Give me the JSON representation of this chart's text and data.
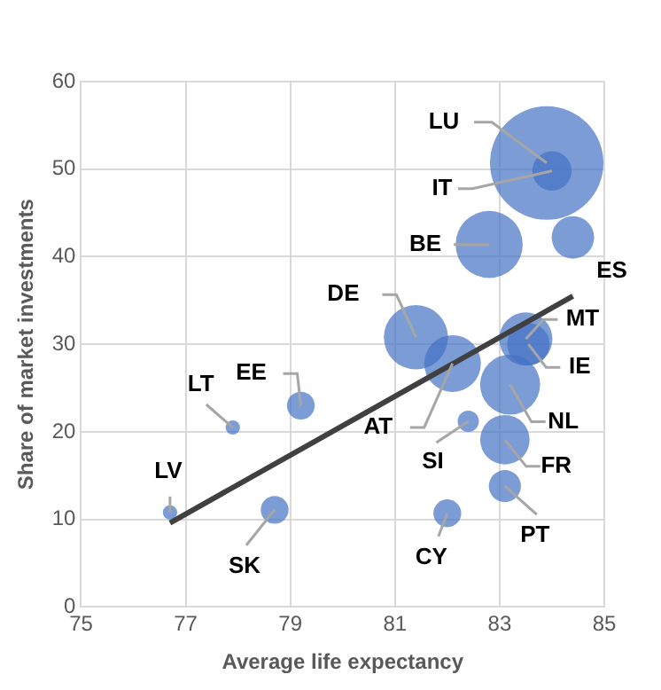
{
  "chart_data": {
    "type": "bubble",
    "xlabel": "Average life expectancy",
    "ylabel": "Share of market investments",
    "xlim": [
      75,
      85
    ],
    "xticks": [
      75,
      77,
      79,
      81,
      83,
      85
    ],
    "ylim": [
      0,
      60
    ],
    "yticks": [
      0,
      10,
      20,
      30,
      40,
      50,
      60
    ],
    "grid": true,
    "legend": false,
    "series": [
      {
        "type": "bubble",
        "color": "#4472c4",
        "x": [
          83.9,
          84.0,
          82.8,
          84.4,
          81.4,
          82.1,
          83.5,
          83.55,
          83.2,
          82.4,
          83.1,
          83.1,
          82.0,
          78.7,
          79.2,
          77.9,
          76.7
        ],
        "values": [
          50.7,
          49.8,
          41.4,
          42.2,
          30.8,
          27.8,
          30.6,
          30.0,
          25.4,
          21.2,
          19.1,
          13.8,
          10.7,
          11.1,
          23.0,
          20.5,
          10.8
        ],
        "sizes": [
          1,
          0.12,
          0.35,
          0.14,
          0.32,
          0.25,
          0.22,
          0.14,
          0.28,
          0.035,
          0.19,
          0.08,
          0.06,
          0.06,
          0.06,
          0.016,
          0.016
        ]
      },
      {
        "type": "line",
        "color": "#404040",
        "marker": "none",
        "x": [
          76.7,
          84.4
        ],
        "values": [
          9.6,
          35.5
        ]
      }
    ],
    "annotations": [
      {
        "text": "LU",
        "x": 83.9,
        "y": 50.7
      },
      {
        "text": "IT",
        "x": 84.0,
        "y": 49.8
      },
      {
        "text": "BE",
        "x": 82.8,
        "y": 41.4
      },
      {
        "text": "ES",
        "x": 84.4,
        "y": 42.2
      },
      {
        "text": "DE",
        "x": 81.4,
        "y": 30.8
      },
      {
        "text": "AT",
        "x": 82.1,
        "y": 27.8
      },
      {
        "text": "MT",
        "x": 83.5,
        "y": 30.6
      },
      {
        "text": "IE",
        "x": 83.55,
        "y": 30.0
      },
      {
        "text": "NL",
        "x": 83.2,
        "y": 25.4
      },
      {
        "text": "SI",
        "x": 82.4,
        "y": 21.2
      },
      {
        "text": "FR",
        "x": 83.1,
        "y": 19.1
      },
      {
        "text": "PT",
        "x": 83.1,
        "y": 13.8
      },
      {
        "text": "CY",
        "x": 82.0,
        "y": 10.7
      },
      {
        "text": "SK",
        "x": 78.7,
        "y": 11.1
      },
      {
        "text": "EE",
        "x": 79.2,
        "y": 23.0
      },
      {
        "text": "LT",
        "x": 77.9,
        "y": 20.5
      },
      {
        "text": "LV",
        "x": 76.7,
        "y": 10.8
      }
    ]
  }
}
